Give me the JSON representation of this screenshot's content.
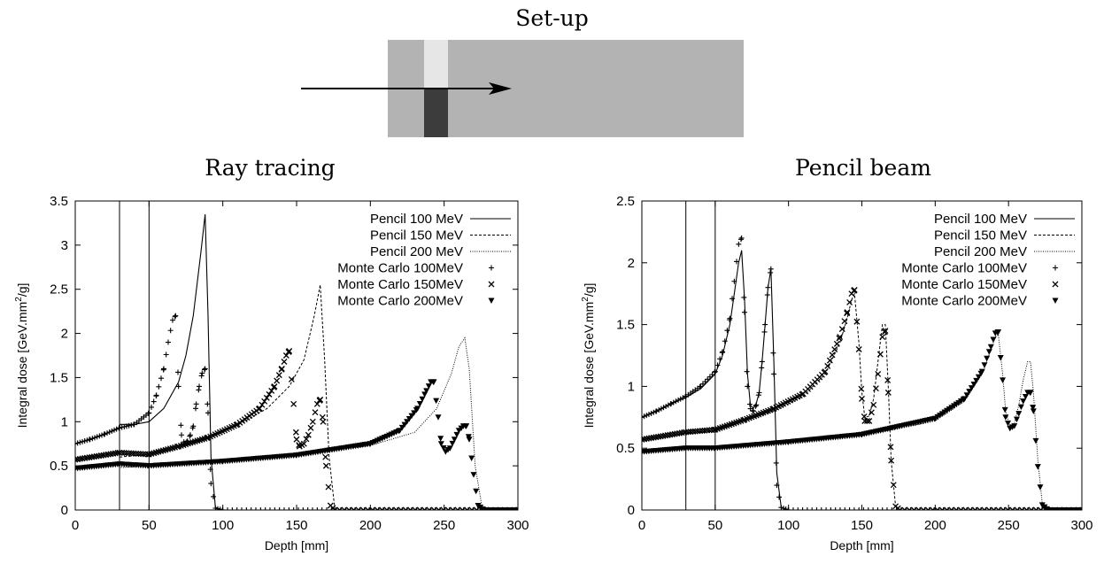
{
  "setup": {
    "title": "Set-up"
  },
  "chart_data": [
    {
      "type": "line",
      "title": "Ray tracing",
      "xlabel": "Depth [mm]",
      "ylabel": "Integral dose [GeV.mm^2/g]",
      "xlim": [
        0,
        300
      ],
      "ylim": [
        0,
        3.5
      ],
      "xticks": [
        0,
        50,
        100,
        150,
        200,
        250,
        300
      ],
      "yticks": [
        0,
        0.5,
        1,
        1.5,
        2,
        2.5,
        3,
        3.5
      ],
      "xtick_labels": [
        "0",
        "50",
        "100",
        "150",
        "200",
        "250",
        "300"
      ],
      "ytick_labels": [
        "0",
        "0.5",
        "1",
        "1.5",
        "2",
        "2.5",
        "3",
        "3.5"
      ],
      "vlines": [
        30,
        50
      ],
      "legend_position": "top-right",
      "legend": [
        "Pencil 100 MeV",
        "Pencil 150 MeV",
        "Pencil 200 MeV",
        "Monte Carlo 100MeV",
        "Monte Carlo 150MeV",
        "Monte Carlo 200MeV"
      ],
      "series": [
        {
          "name": "Pencil 100 MeV",
          "style": "solid",
          "x": [
            0,
            10,
            20,
            30,
            30.5,
            40,
            50,
            60,
            70,
            75,
            80,
            85,
            88,
            90,
            92,
            95,
            100,
            300
          ],
          "y": [
            0.75,
            0.8,
            0.86,
            0.93,
            0.97,
            0.97,
            1.0,
            1.15,
            1.45,
            1.75,
            2.2,
            2.9,
            3.35,
            2.2,
            0.6,
            0.03,
            0,
            0
          ]
        },
        {
          "name": "Pencil 150 MeV",
          "style": "dashed",
          "x": [
            0,
            30,
            30.5,
            50,
            70,
            90,
            110,
            130,
            145,
            155,
            162,
            166,
            169,
            172,
            176,
            300
          ],
          "y": [
            0.57,
            0.65,
            0.6,
            0.63,
            0.73,
            0.82,
            0.96,
            1.15,
            1.4,
            1.7,
            2.2,
            2.55,
            1.7,
            0.6,
            0,
            0
          ]
        },
        {
          "name": "Pencil 200 MeV",
          "style": "dotted",
          "x": [
            0,
            30,
            30.5,
            50,
            100,
            150,
            200,
            230,
            245,
            255,
            260,
            264,
            267,
            271,
            276,
            300
          ],
          "y": [
            0.47,
            0.52,
            0.48,
            0.5,
            0.55,
            0.62,
            0.73,
            0.88,
            1.15,
            1.55,
            1.85,
            1.95,
            1.6,
            0.5,
            0,
            0
          ]
        },
        {
          "name": "Monte Carlo 100MeV",
          "marker": "plus",
          "x": [
            0,
            10,
            20,
            30,
            40,
            50,
            55,
            60,
            63,
            66,
            68,
            70,
            72,
            74,
            76,
            78,
            80,
            82,
            84,
            86,
            88,
            90,
            92,
            95,
            100,
            300
          ],
          "y": [
            0.75,
            0.8,
            0.86,
            0.93,
            0.97,
            1.1,
            1.3,
            1.6,
            1.9,
            2.15,
            2.2,
            1.4,
            0.85,
            0.75,
            0.78,
            0.85,
            0.95,
            1.2,
            1.4,
            1.55,
            1.6,
            1.1,
            0.3,
            0.02,
            0,
            0
          ]
        },
        {
          "name": "Monte Carlo 150MeV",
          "marker": "cross",
          "x": [
            0,
            30,
            50,
            70,
            90,
            110,
            125,
            135,
            140,
            143,
            145,
            148,
            150,
            152,
            155,
            158,
            161,
            164,
            166,
            168,
            170,
            173,
            176,
            300
          ],
          "y": [
            0.57,
            0.65,
            0.63,
            0.72,
            0.82,
            0.97,
            1.15,
            1.4,
            1.6,
            1.75,
            1.8,
            1.2,
            0.8,
            0.72,
            0.75,
            0.85,
            1.0,
            1.2,
            1.25,
            1.0,
            0.5,
            0.05,
            0,
            0
          ]
        },
        {
          "name": "Monte Carlo 200MeV",
          "marker": "triangle-down",
          "x": [
            0,
            30,
            50,
            100,
            150,
            200,
            220,
            232,
            238,
            241,
            243,
            246,
            248,
            251,
            254,
            257,
            260,
            263,
            265,
            267,
            270,
            273,
            277,
            300
          ],
          "y": [
            0.47,
            0.52,
            0.5,
            0.55,
            0.62,
            0.75,
            0.9,
            1.15,
            1.35,
            1.45,
            1.45,
            1.05,
            0.75,
            0.66,
            0.7,
            0.8,
            0.9,
            0.95,
            0.95,
            0.8,
            0.4,
            0.05,
            0,
            0
          ]
        }
      ]
    },
    {
      "type": "line",
      "title": "Pencil beam",
      "xlabel": "Depth [mm]",
      "ylabel": "Integral dose [GeV.mm^2/g]",
      "xlim": [
        0,
        300
      ],
      "ylim": [
        0,
        2.5
      ],
      "xticks": [
        0,
        50,
        100,
        150,
        200,
        250,
        300
      ],
      "yticks": [
        0,
        0.5,
        1,
        1.5,
        2,
        2.5
      ],
      "xtick_labels": [
        "0",
        "50",
        "100",
        "150",
        "200",
        "250",
        "300"
      ],
      "ytick_labels": [
        "0",
        "0.5",
        "1",
        "1.5",
        "2",
        "2.5"
      ],
      "vlines": [
        30,
        50
      ],
      "legend_position": "top-right",
      "legend": [
        "Pencil 100 MeV",
        "Pencil 150 MeV",
        "Pencil 200 MeV",
        "Monte Carlo 100MeV",
        "Monte Carlo 150MeV",
        "Monte Carlo 200MeV"
      ],
      "series": [
        {
          "name": "Pencil 100 MeV",
          "style": "solid",
          "x": [
            0,
            10,
            20,
            30,
            40,
            50,
            55,
            60,
            63,
            66,
            68,
            70,
            72,
            74,
            76,
            78,
            80,
            82,
            84,
            86,
            88,
            90,
            92,
            95,
            100,
            300
          ],
          "y": [
            0.75,
            0.8,
            0.86,
            0.91,
            0.98,
            1.1,
            1.25,
            1.5,
            1.75,
            2.0,
            2.1,
            1.7,
            1.1,
            0.85,
            0.82,
            0.86,
            0.95,
            1.2,
            1.5,
            1.8,
            1.95,
            1.2,
            0.3,
            0.02,
            0,
            0
          ]
        },
        {
          "name": "Pencil 150 MeV",
          "style": "dashed",
          "x": [
            0,
            30,
            50,
            70,
            90,
            110,
            125,
            135,
            140,
            143,
            145,
            148,
            150,
            152,
            155,
            158,
            161,
            164,
            166,
            168,
            170,
            173,
            176,
            300
          ],
          "y": [
            0.57,
            0.62,
            0.64,
            0.72,
            0.8,
            0.92,
            1.1,
            1.35,
            1.55,
            1.7,
            1.75,
            1.35,
            0.95,
            0.75,
            0.76,
            0.9,
            1.2,
            1.5,
            1.5,
            1.0,
            0.4,
            0.03,
            0,
            0
          ]
        },
        {
          "name": "Pencil 200 MeV",
          "style": "dotted",
          "x": [
            0,
            30,
            50,
            100,
            150,
            200,
            220,
            232,
            238,
            241,
            243,
            246,
            248,
            251,
            254,
            257,
            260,
            263,
            265,
            267,
            270,
            273,
            277,
            300
          ],
          "y": [
            0.47,
            0.51,
            0.51,
            0.55,
            0.6,
            0.72,
            0.88,
            1.1,
            1.3,
            1.4,
            1.42,
            1.1,
            0.8,
            0.68,
            0.7,
            0.85,
            1.05,
            1.2,
            1.2,
            0.95,
            0.4,
            0.05,
            0,
            0
          ]
        },
        {
          "name": "Monte Carlo 100MeV",
          "marker": "plus",
          "x": [
            0,
            10,
            20,
            30,
            40,
            50,
            55,
            60,
            63,
            66,
            68,
            70,
            72,
            74,
            76,
            78,
            80,
            82,
            84,
            86,
            88,
            90,
            92,
            95,
            100,
            300
          ],
          "y": [
            0.75,
            0.8,
            0.86,
            0.92,
            1.0,
            1.12,
            1.28,
            1.55,
            1.85,
            2.15,
            2.2,
            1.6,
            1.0,
            0.82,
            0.8,
            0.85,
            0.95,
            1.2,
            1.5,
            1.8,
            1.95,
            1.1,
            0.2,
            0.02,
            0,
            0
          ]
        },
        {
          "name": "Monte Carlo 150MeV",
          "marker": "cross",
          "x": [
            0,
            30,
            50,
            70,
            90,
            110,
            125,
            135,
            140,
            143,
            145,
            148,
            150,
            152,
            155,
            158,
            161,
            164,
            166,
            168,
            170,
            173,
            176,
            300
          ],
          "y": [
            0.57,
            0.63,
            0.65,
            0.73,
            0.82,
            0.94,
            1.12,
            1.4,
            1.6,
            1.75,
            1.78,
            1.3,
            0.9,
            0.72,
            0.72,
            0.85,
            1.1,
            1.4,
            1.45,
            0.95,
            0.4,
            0.03,
            0,
            0
          ]
        },
        {
          "name": "Monte Carlo 200MeV",
          "marker": "triangle-down",
          "x": [
            0,
            30,
            50,
            100,
            150,
            200,
            220,
            232,
            238,
            241,
            243,
            246,
            248,
            251,
            254,
            257,
            260,
            263,
            265,
            267,
            270,
            273,
            277,
            300
          ],
          "y": [
            0.47,
            0.5,
            0.5,
            0.55,
            0.61,
            0.74,
            0.9,
            1.12,
            1.32,
            1.43,
            1.44,
            1.05,
            0.75,
            0.66,
            0.68,
            0.78,
            0.88,
            0.95,
            0.95,
            0.8,
            0.35,
            0.04,
            0,
            0
          ]
        }
      ]
    }
  ]
}
